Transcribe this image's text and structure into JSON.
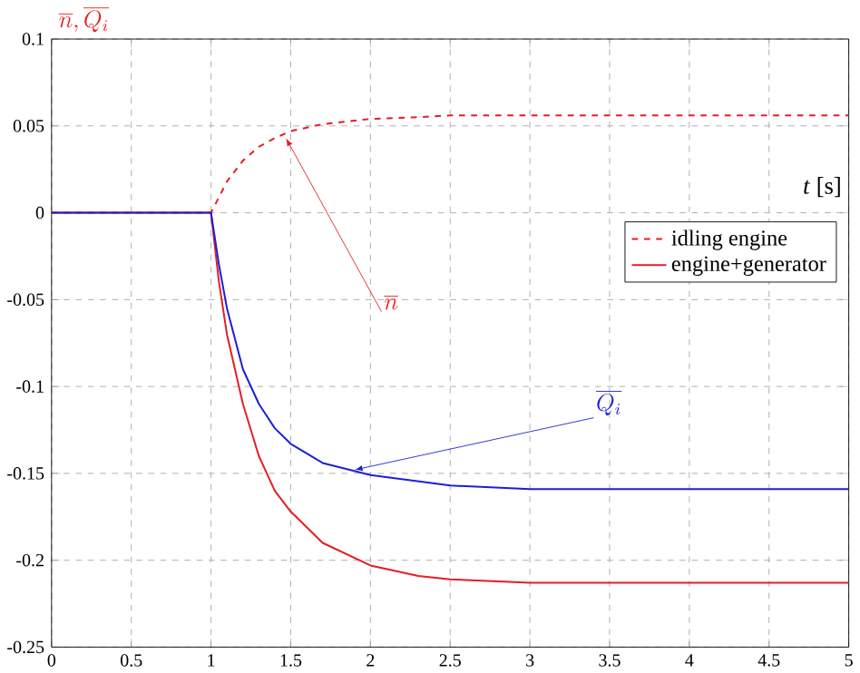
{
  "chart_data": {
    "type": "line",
    "xlabel": "*t* [s]",
    "ylabel": "\\overline{n},\\overline{Q_i}",
    "xlim": [
      0,
      5
    ],
    "ylim": [
      -0.25,
      0.1
    ],
    "xticks": [
      0,
      0.5,
      1,
      1.5,
      2,
      2.5,
      3,
      3.5,
      4,
      4.5,
      5
    ],
    "yticks": [
      -0.25,
      -0.2,
      -0.15,
      -0.1,
      -0.05,
      0,
      0.05,
      0.1
    ],
    "grid": true,
    "line_style": "solid",
    "series": [
      {
        "color": "#e41e26",
        "line_style": "dashed",
        "x": [
          0,
          1,
          1.1,
          1.2,
          1.3,
          1.4,
          1.5,
          1.7,
          2,
          2.3,
          2.5,
          5
        ],
        "values": [
          0,
          0,
          0.018,
          0.03,
          0.038,
          0.043,
          0.047,
          0.051,
          0.054,
          0.055,
          0.056,
          0.056
        ]
      },
      {
        "color": "#e41e26",
        "x": [
          0,
          1,
          1.05,
          1.1,
          1.2,
          1.3,
          1.4,
          1.5,
          1.7,
          2,
          2.3,
          2.5,
          3,
          5
        ],
        "values": [
          0,
          0,
          -0.04,
          -0.07,
          -0.11,
          -0.14,
          -0.16,
          -0.172,
          -0.19,
          -0.203,
          -0.209,
          -0.211,
          -0.213,
          -0.213
        ]
      },
      {
        "color": "#1f1fd6",
        "x": [
          0,
          1,
          1.05,
          1.1,
          1.2,
          1.3,
          1.4,
          1.5,
          1.7,
          2,
          2.5,
          3,
          5
        ],
        "values": [
          0,
          0,
          -0.03,
          -0.055,
          -0.09,
          -0.11,
          -0.124,
          -0.133,
          -0.144,
          -0.151,
          -0.157,
          -0.159,
          -0.159
        ]
      }
    ],
    "annotations": [
      {
        "text": "\\overline{n}",
        "x": 1.47,
        "y": 0.043
      },
      {
        "text": "\\overline{Q_i}",
        "x": 1.9,
        "y": -0.148
      },
      "idling engine",
      "engine+generator"
    ]
  }
}
